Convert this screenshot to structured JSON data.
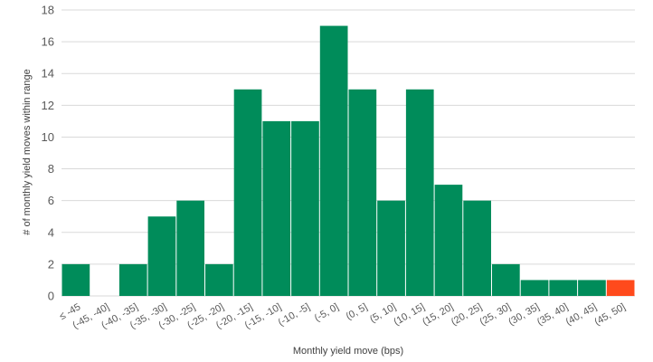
{
  "chart_data": {
    "type": "bar",
    "title": "",
    "xlabel": "Monthly yield move (bps)",
    "ylabel": "# of monthly yield moves within range",
    "ylim": [
      0,
      18
    ],
    "yticks": [
      0,
      2,
      4,
      6,
      8,
      10,
      12,
      14,
      16,
      18
    ],
    "grid": true,
    "legend": "none",
    "categories": [
      "≤ -45",
      "(-45, -40]",
      "(-40, -35]",
      "(-35, -30]",
      "(-30, -25]",
      "(-25, -20]",
      "(-20, -15]",
      "(-15, -10]",
      "(-10, -5]",
      "(-5, 0]",
      "(0, 5]",
      "(5, 10]",
      "(10, 15]",
      "(15, 20]",
      "(20, 25]",
      "(25, 30]",
      "(30, 35]",
      "(35, 40]",
      "(40, 45]",
      "(45, 50]"
    ],
    "values": [
      2,
      0,
      2,
      5,
      6,
      2,
      13,
      11,
      11,
      17,
      13,
      6,
      13,
      7,
      6,
      2,
      1,
      1,
      1,
      1
    ],
    "highlight_index": 19,
    "colors": {
      "bar": "#008C5A",
      "highlight": "#FF4A1C",
      "grid": "#d9d9d9",
      "text": "#595959"
    }
  }
}
